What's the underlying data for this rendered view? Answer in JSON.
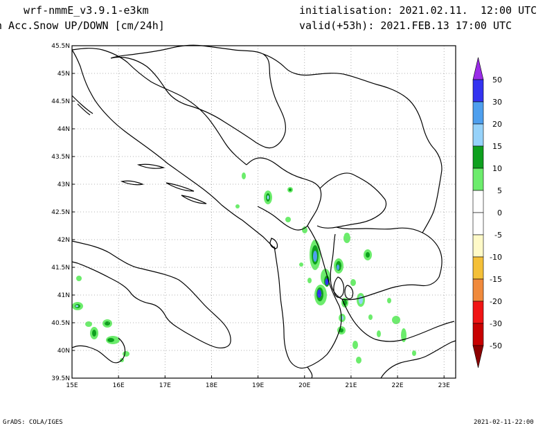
{
  "header": {
    "model": "wrf-nmmE_v3.9.1-e3km",
    "variable": "n Acc.Snow UP/DOWN [cm/24h]",
    "initialisation": "initialisation: 2021.02.11.  12:00 UTC",
    "valid": "valid(+53h): 2021.FEB.13 17:00 UTC"
  },
  "footer": {
    "left": "GrADS: COLA/IGES",
    "right": "2021-02-11-22:00"
  },
  "map": {
    "lon_range": [
      15,
      23.25
    ],
    "lat_range": [
      39.5,
      45.5
    ],
    "lon_ticks": [
      "15E",
      "16E",
      "17E",
      "18E",
      "19E",
      "20E",
      "21E",
      "22E",
      "23E"
    ],
    "lat_ticks": [
      "39.5N",
      "40N",
      "40.5N",
      "41N",
      "41.5N",
      "42N",
      "42.5N",
      "43N",
      "43.5N",
      "44N",
      "44.5N",
      "45N",
      "45.5N"
    ],
    "grid": "dotted"
  },
  "colorbar": {
    "levels": [
      "50",
      "30",
      "20",
      "15",
      "10",
      "5",
      "0",
      "-5",
      "-10",
      "-15",
      "-20",
      "-30",
      "-50"
    ],
    "colors": [
      "#9a2ce8",
      "#3333f0",
      "#4e9fee",
      "#96d2fa",
      "#0ea01e",
      "#6cec6c",
      "#ffffff",
      "#ffffff",
      "#fffac8",
      "#f4c038",
      "#f08a3c",
      "#f01414",
      "#c80000",
      "#8c0000"
    ]
  },
  "fields": {
    "snow_colors": {
      "light": "#6cec6c",
      "green": "#0ea01e",
      "lightblue": "#96d2fa",
      "blue": "#4e9fee",
      "dark": "#3333f0"
    }
  }
}
